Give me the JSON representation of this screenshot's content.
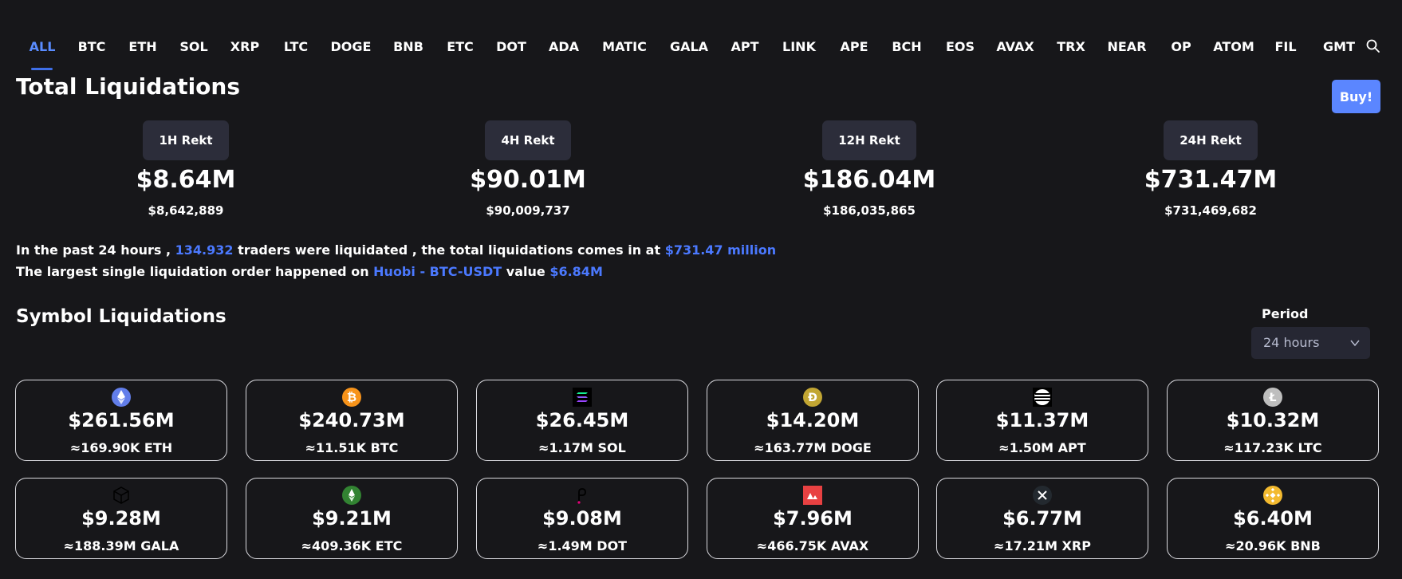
{
  "tabs": [
    "ALL",
    "BTC",
    "ETH",
    "SOL",
    "XRP",
    "LTC",
    "DOGE",
    "BNB",
    "ETC",
    "DOT",
    "ADA",
    "MATIC",
    "GALA",
    "APT",
    "LINK",
    "APE",
    "BCH",
    "EOS",
    "AVAX",
    "TRX",
    "NEAR",
    "OP",
    "ATOM",
    "FIL",
    "GMT"
  ],
  "active_tab": "ALL",
  "title": "Total Liquidations",
  "buy_label": "Buy!",
  "stats": [
    {
      "badge": "1H Rekt",
      "big": "$8.64M",
      "small": "$8,642,889"
    },
    {
      "badge": "4H Rekt",
      "big": "$90.01M",
      "small": "$90,009,737"
    },
    {
      "badge": "12H Rekt",
      "big": "$186.04M",
      "small": "$186,035,865"
    },
    {
      "badge": "24H Rekt",
      "big": "$731.47M",
      "small": "$731,469,682"
    }
  ],
  "info1": {
    "p1": "In the past 24 hours ,",
    "traders": "134.932",
    "p2": "traders were liquidated , the total liquidations comes in at",
    "total": "$731.47 million"
  },
  "info2": {
    "p1": "The largest single liquidation order happened on",
    "exchange": "Huobi - BTC-USDT",
    "p2": "value",
    "value": "$6.84M"
  },
  "symbol_title": "Symbol Liquidations",
  "period": {
    "label": "Period",
    "value": "24 hours"
  },
  "cards": [
    {
      "icon": "eth-icon",
      "amount": "$261.56M",
      "qty": "≈169.90K ETH"
    },
    {
      "icon": "btc-icon",
      "amount": "$240.73M",
      "qty": "≈11.51K BTC"
    },
    {
      "icon": "sol-icon",
      "amount": "$26.45M",
      "qty": "≈1.17M SOL"
    },
    {
      "icon": "doge-icon",
      "amount": "$14.20M",
      "qty": "≈163.77M DOGE"
    },
    {
      "icon": "apt-icon",
      "amount": "$11.37M",
      "qty": "≈1.50M APT"
    },
    {
      "icon": "ltc-icon",
      "amount": "$10.32M",
      "qty": "≈117.23K LTC"
    },
    {
      "icon": "gala-icon",
      "amount": "$9.28M",
      "qty": "≈188.39M GALA"
    },
    {
      "icon": "etc-icon",
      "amount": "$9.21M",
      "qty": "≈409.36K ETC"
    },
    {
      "icon": "dot-icon",
      "amount": "$9.08M",
      "qty": "≈1.49M DOT"
    },
    {
      "icon": "avax-icon",
      "amount": "$7.96M",
      "qty": "≈466.75K AVAX"
    },
    {
      "icon": "xrp-icon",
      "amount": "$6.77M",
      "qty": "≈17.21M XRP"
    },
    {
      "icon": "bnb-icon",
      "amount": "$6.40M",
      "qty": "≈20.96K BNB"
    }
  ],
  "colors": {
    "background": "#17171a",
    "accent": "#5a8cff",
    "link": "#4b79ff",
    "badge": "#2c2d3a",
    "card_border": "#d9d9de"
  }
}
